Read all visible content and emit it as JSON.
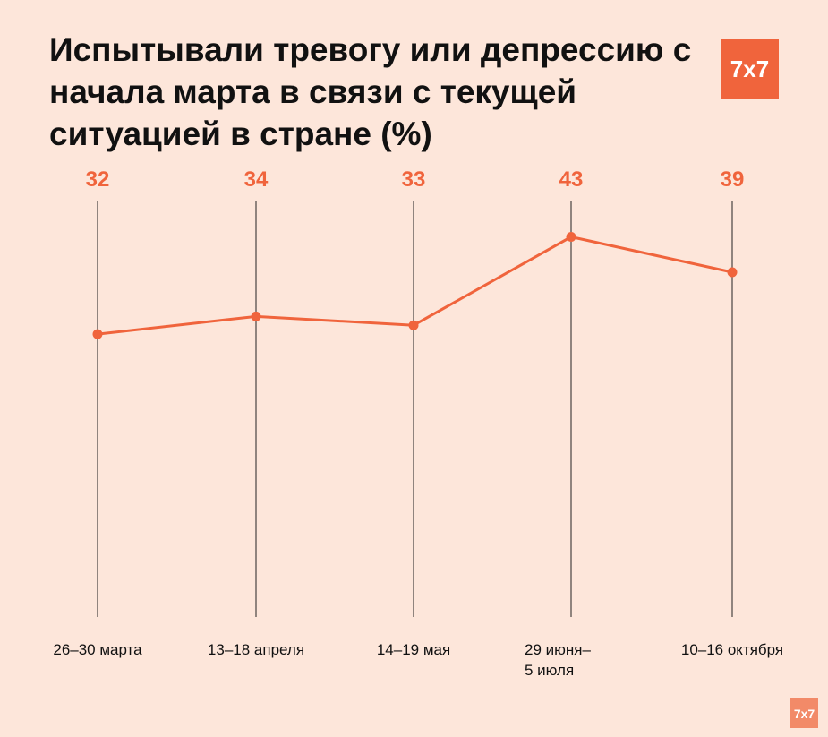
{
  "logo": "7x7",
  "chart_data": {
    "type": "line",
    "title": "Испытывали тревогу или депрессию с начала марта в связи с текущей ситуацией в стране (%)",
    "categories": [
      [
        "26–30 марта"
      ],
      [
        "13–18 апреля"
      ],
      [
        "14–19 мая"
      ],
      [
        "29 июня–",
        "5 июля"
      ],
      [
        "10–16 октября"
      ]
    ],
    "values": [
      32,
      34,
      33,
      43,
      39
    ],
    "data_labels": [
      "32",
      "34",
      "33",
      "43",
      "39"
    ],
    "ylim": [
      0,
      47
    ],
    "grid": "vertical lines at each category",
    "colors": {
      "line": "#F0643C",
      "background": "#FDE6DA",
      "gridline": "#222222"
    }
  }
}
